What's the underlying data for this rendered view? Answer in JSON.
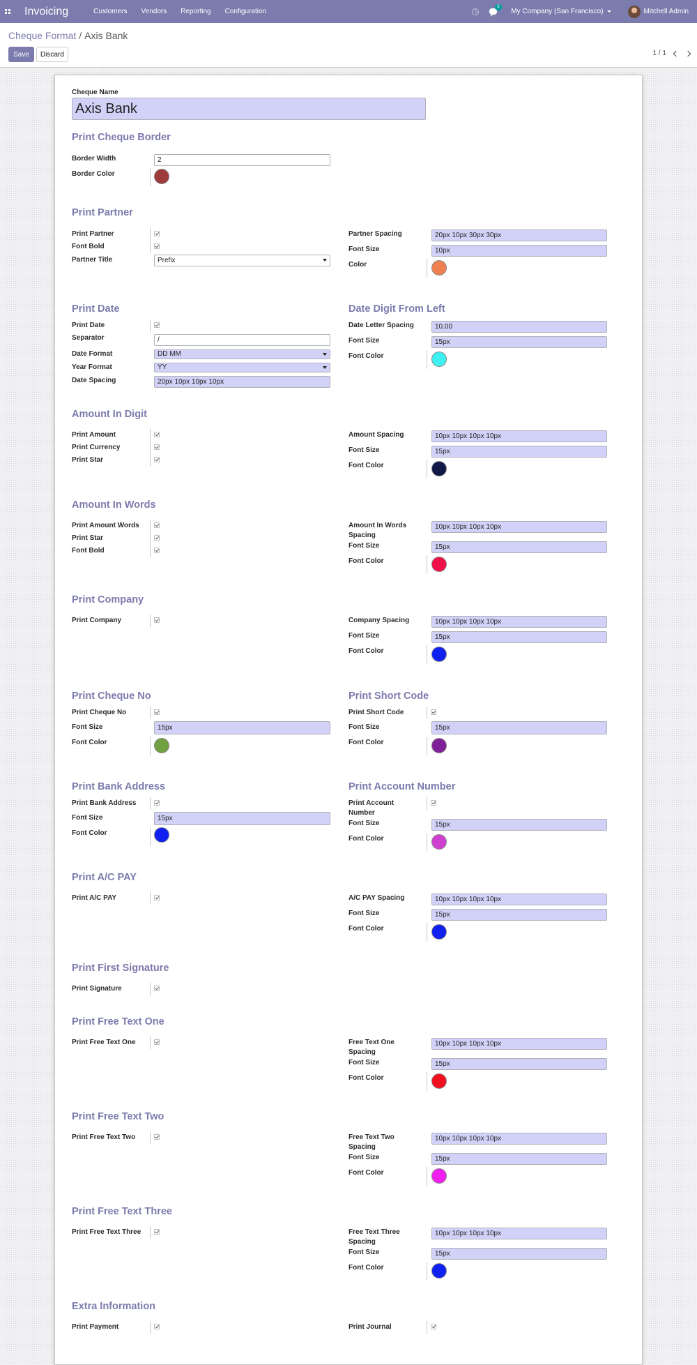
{
  "navbar": {
    "app_name": "Invoicing",
    "menu": [
      "Customers",
      "Vendors",
      "Reporting",
      "Configuration"
    ],
    "chat_badge": "3",
    "company": "My Company (San Francisco)",
    "user": "Mitchell Admin"
  },
  "breadcrumb": {
    "parent": "Cheque Format",
    "separator": "/",
    "current": "Axis Bank"
  },
  "buttons": {
    "save": "Save",
    "discard": "Discard"
  },
  "pager": "1 / 1",
  "form": {
    "name_label": "Cheque Name",
    "name_value": "Axis Bank",
    "border": {
      "title": "Print Cheque Border",
      "width_label": "Border Width",
      "width_value": "2",
      "color_label": "Border Color",
      "color": "#9e3a3a"
    },
    "partner": {
      "title": "Print Partner",
      "print_label": "Print Partner",
      "bold_label": "Font Bold",
      "title_label": "Partner Title",
      "title_value": "Prefix",
      "spacing_label": "Partner Spacing",
      "spacing_value": "20px 10px 30px 30px",
      "size_label": "Font Size",
      "size_value": "10px",
      "color_label": "Color",
      "color": "#f08050"
    },
    "date": {
      "title": "Print Date",
      "print_label": "Print Date",
      "sep_label": "Separator",
      "sep_value": "/",
      "format_label": "Date Format",
      "format_value": "DD MM",
      "year_label": "Year Format",
      "year_value": "YY",
      "spacing_label": "Date Spacing",
      "spacing_value": "20px 10px 10px 10px",
      "right_title": "Date Digit From Left",
      "letter_label": "Date Letter Spacing",
      "letter_value": "10.00",
      "size_label": "Font Size",
      "size_value": "15px",
      "color_label": "Font Color",
      "color": "#3ef0f0"
    },
    "amount_digit": {
      "title": "Amount In Digit",
      "amount_label": "Print Amount",
      "currency_label": "Print Currency",
      "star_label": "Print Star",
      "spacing_label": "Amount Spacing",
      "spacing_value": "10px 10px 10px 10px",
      "size_label": "Font Size",
      "size_value": "15px",
      "color_label": "Font Color",
      "color": "#101848"
    },
    "amount_words": {
      "title": "Amount In Words",
      "words_label": "Print Amount Words",
      "star_label": "Print Star",
      "bold_label": "Font Bold",
      "spacing_label_1": "Amount In Words",
      "spacing_label_2": "Spacing",
      "spacing_value": "10px 10px 10px 10px",
      "size_label": "Font Size",
      "size_value": "15px",
      "color_label": "Font Color",
      "color": "#f0104a"
    },
    "company": {
      "title": "Print Company",
      "print_label": "Print Company",
      "spacing_label": "Company Spacing",
      "spacing_value": "10px 10px 10px 10px",
      "size_label": "Font Size",
      "size_value": "15px",
      "color_label": "Font Color",
      "color": "#1020f0"
    },
    "cheque_no": {
      "title": "Print Cheque No",
      "print_label": "Print Cheque No",
      "size_label": "Font Size",
      "size_value": "15px",
      "color_label": "Font Color",
      "color": "#70a040",
      "right_title": "Print Short Code",
      "short_label": "Print Short Code",
      "right_size_label": "Font Size",
      "right_size_value": "15px",
      "right_color_label": "Font Color",
      "right_color": "#802098"
    },
    "bank": {
      "title": "Print Bank Address",
      "print_label": "Print Bank Address",
      "size_label": "Font Size",
      "size_value": "15px",
      "color_label": "Font Color",
      "color": "#1020f0",
      "right_title": "Print Account Number",
      "account_label_1": "Print Account",
      "account_label_2": "Number",
      "right_size_label": "Font Size",
      "right_size_value": "15px",
      "right_color_label": "Font Color",
      "right_color": "#d040d0"
    },
    "ac_pay": {
      "title": "Print A/C PAY",
      "print_label": "Print A/C PAY",
      "spacing_label": "A/C PAY Spacing",
      "spacing_value": "10px 10px 10px 10px",
      "size_label": "Font Size",
      "size_value": "15px",
      "color_label": "Font Color",
      "color": "#1020f0"
    },
    "signature": {
      "title": "Print First Signature",
      "print_label": "Print Signature"
    },
    "free1": {
      "title": "Print Free Text One",
      "print_label": "Print Free Text One",
      "spacing_label_1": "Free Text One",
      "spacing_label_2": "Spacing",
      "spacing_value": "10px 10px 10px 10px",
      "size_label": "Font Size",
      "size_value": "15px",
      "color_label": "Font Color",
      "color": "#f01020"
    },
    "free2": {
      "title": "Print Free Text Two",
      "print_label": "Print Free Text Two",
      "spacing_label_1": "Free Text Two",
      "spacing_label_2": "Spacing",
      "spacing_value": "10px 10px 10px 10px",
      "size_label": "Font Size",
      "size_value": "15px",
      "color_label": "Font Color",
      "color": "#f020f0"
    },
    "free3": {
      "title": "Print Free Text Three",
      "print_label": "Print Free Text Three",
      "spacing_label_1": "Free Text Three",
      "spacing_label_2": "Spacing",
      "spacing_value": "10px 10px 10px 10px",
      "size_label": "Font Size",
      "size_value": "15px",
      "color_label": "Font Color",
      "color": "#1020f0"
    },
    "extra": {
      "title": "Extra Information",
      "payment_label": "Print Payment",
      "journal_label": "Print Journal"
    }
  }
}
